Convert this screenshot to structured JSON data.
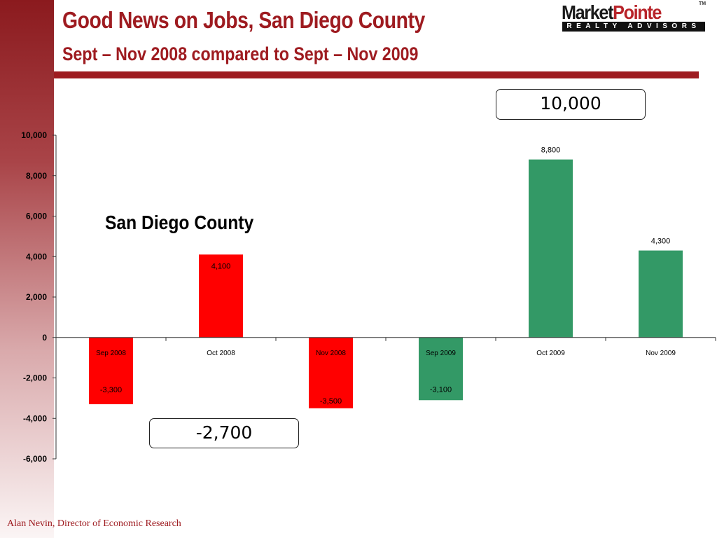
{
  "header": {
    "title": "Good News on Jobs, San Diego County",
    "subtitle": "Sept – Nov 2008 compared to Sept – Nov 2009"
  },
  "logo": {
    "word1": "Market",
    "word2": "Pointe",
    "tm": "TM",
    "tagline": "REALTY ADVISORS"
  },
  "callouts": {
    "top": "10,000",
    "bottom": "-2,700"
  },
  "region_label": "San Diego County",
  "footer": "Alan Nevin, Director of Economic Research",
  "colors": {
    "brand": "#9e1b20",
    "bar_2008": "#ff0000",
    "bar_2009": "#339966"
  },
  "chart_data": {
    "type": "bar",
    "categories": [
      "Sep 2008",
      "Oct 2008",
      "Nov 2008",
      "Sep 2009",
      "Oct 2009",
      "Nov 2009"
    ],
    "values": [
      -3300,
      4100,
      -3500,
      -3100,
      8800,
      4300
    ],
    "data_labels": [
      "-3,300",
      "4,100",
      "-3,500",
      "-3,100",
      "8,800",
      "4,300"
    ],
    "bar_colors": [
      "#ff0000",
      "#ff0000",
      "#ff0000",
      "#339966",
      "#339966",
      "#339966"
    ],
    "yticks": [
      10000,
      8000,
      6000,
      4000,
      2000,
      0,
      -2000,
      -4000,
      -6000
    ],
    "ytick_labels": [
      "10,000",
      "8,000",
      "6,000",
      "4,000",
      "2,000",
      "0",
      "-2,000",
      "-4,000",
      "-6,000"
    ],
    "ylim": [
      -6000,
      10000
    ],
    "grid": false,
    "title": "",
    "xlabel": "",
    "ylabel": ""
  }
}
